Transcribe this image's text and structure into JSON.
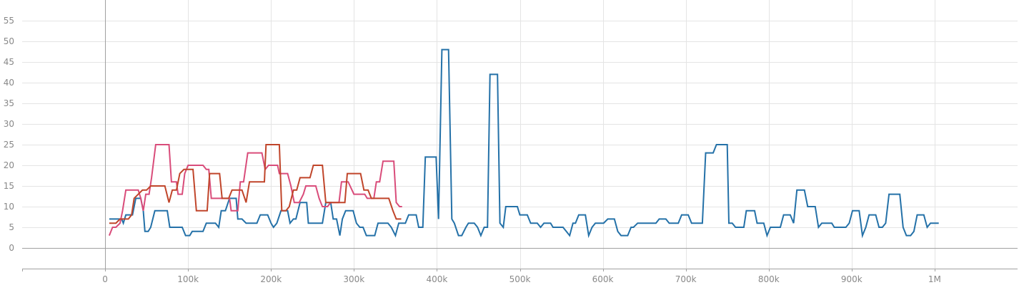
{
  "chart_data": {
    "type": "line",
    "title": "",
    "xlabel": "",
    "ylabel": "",
    "xlim": [
      -100000,
      1100000
    ],
    "ylim": [
      -5,
      60
    ],
    "x_ticks": [
      0,
      100000,
      200000,
      300000,
      400000,
      500000,
      600000,
      700000,
      800000,
      900000,
      1000000
    ],
    "x_tick_labels": [
      "0",
      "100k",
      "200k",
      "300k",
      "400k",
      "500k",
      "600k",
      "700k",
      "800k",
      "900k",
      "1M"
    ],
    "y_ticks": [
      0,
      5,
      10,
      15,
      20,
      25,
      30,
      35,
      40,
      45,
      50,
      55
    ],
    "y_tick_labels": [
      "0",
      "5",
      "10",
      "15",
      "20",
      "25",
      "30",
      "35",
      "40",
      "45",
      "50",
      "55"
    ],
    "grid": true,
    "colors": {
      "blue": "#2471a8",
      "pink": "#d94c7a",
      "red": "#c0452a",
      "grid": "#e4e4e4",
      "axis": "#a0a0a0",
      "tick_text": "#888888"
    },
    "series": [
      {
        "color_key": "blue",
        "points": [
          [
            5000,
            7
          ],
          [
            20000,
            7
          ],
          [
            22000,
            6
          ],
          [
            25000,
            8
          ],
          [
            33000,
            8
          ],
          [
            37000,
            12
          ],
          [
            43000,
            12
          ],
          [
            46000,
            9
          ],
          [
            48000,
            4
          ],
          [
            52000,
            4
          ],
          [
            55000,
            5
          ],
          [
            60000,
            9
          ],
          [
            75000,
            9
          ],
          [
            78000,
            5
          ],
          [
            93000,
            5
          ],
          [
            97000,
            3
          ],
          [
            102000,
            3
          ],
          [
            105000,
            4
          ],
          [
            118000,
            4
          ],
          [
            122000,
            6
          ],
          [
            133000,
            6
          ],
          [
            137000,
            5
          ],
          [
            140000,
            9
          ],
          [
            145000,
            9
          ],
          [
            150000,
            12
          ],
          [
            158000,
            12
          ],
          [
            160000,
            7
          ],
          [
            165000,
            7
          ],
          [
            170000,
            6
          ],
          [
            183000,
            6
          ],
          [
            187000,
            8
          ],
          [
            196000,
            8
          ],
          [
            200000,
            6
          ],
          [
            203000,
            5
          ],
          [
            207000,
            6
          ],
          [
            212000,
            9
          ],
          [
            220000,
            9
          ],
          [
            223000,
            6
          ],
          [
            227000,
            7
          ],
          [
            230000,
            7
          ],
          [
            235000,
            11
          ],
          [
            243000,
            11
          ],
          [
            245000,
            6
          ],
          [
            262000,
            6
          ],
          [
            266000,
            11
          ],
          [
            272000,
            11
          ],
          [
            275000,
            7
          ],
          [
            279000,
            7
          ],
          [
            283000,
            3
          ],
          [
            286000,
            7
          ],
          [
            290000,
            9
          ],
          [
            299000,
            9
          ],
          [
            303000,
            6
          ],
          [
            307000,
            5
          ],
          [
            311000,
            5
          ],
          [
            315000,
            3
          ],
          [
            325000,
            3
          ],
          [
            329000,
            6
          ],
          [
            341000,
            6
          ],
          [
            345000,
            5
          ],
          [
            350000,
            3
          ],
          [
            354000,
            6
          ],
          [
            362000,
            6
          ],
          [
            366000,
            8
          ],
          [
            375000,
            8
          ],
          [
            378000,
            5
          ],
          [
            383000,
            5
          ],
          [
            386000,
            22
          ],
          [
            399000,
            22
          ],
          [
            402000,
            7
          ],
          [
            406000,
            48
          ],
          [
            414000,
            48
          ],
          [
            418000,
            7
          ],
          [
            421000,
            6
          ],
          [
            426000,
            3
          ],
          [
            430000,
            3
          ],
          [
            435000,
            5
          ],
          [
            438000,
            6
          ],
          [
            445000,
            6
          ],
          [
            449000,
            5
          ],
          [
            453000,
            3
          ],
          [
            457000,
            5
          ],
          [
            461000,
            5
          ],
          [
            464000,
            42
          ],
          [
            473000,
            42
          ],
          [
            476000,
            6
          ],
          [
            480000,
            5
          ],
          [
            483000,
            10
          ],
          [
            497000,
            10
          ],
          [
            500000,
            8
          ],
          [
            509000,
            8
          ],
          [
            513000,
            6
          ],
          [
            521000,
            6
          ],
          [
            525000,
            5
          ],
          [
            529000,
            6
          ],
          [
            537000,
            6
          ],
          [
            540000,
            5
          ],
          [
            552000,
            5
          ],
          [
            560000,
            3
          ],
          [
            564000,
            6
          ],
          [
            567000,
            6
          ],
          [
            571000,
            8
          ],
          [
            579000,
            8
          ],
          [
            583000,
            3
          ],
          [
            587000,
            5
          ],
          [
            591000,
            6
          ],
          [
            601000,
            6
          ],
          [
            606000,
            7
          ],
          [
            614000,
            7
          ],
          [
            618000,
            4
          ],
          [
            622000,
            3
          ],
          [
            630000,
            3
          ],
          [
            634000,
            5
          ],
          [
            637000,
            5
          ],
          [
            642000,
            6
          ],
          [
            664000,
            6
          ],
          [
            668000,
            7
          ],
          [
            676000,
            7
          ],
          [
            680000,
            6
          ],
          [
            691000,
            6
          ],
          [
            695000,
            8
          ],
          [
            703000,
            8
          ],
          [
            707000,
            6
          ],
          [
            720000,
            6
          ],
          [
            724000,
            23
          ],
          [
            733000,
            23
          ],
          [
            737000,
            25
          ],
          [
            750000,
            25
          ],
          [
            752000,
            6
          ],
          [
            756000,
            6
          ],
          [
            760000,
            5
          ],
          [
            770000,
            5
          ],
          [
            773000,
            9
          ],
          [
            783000,
            9
          ],
          [
            786000,
            6
          ],
          [
            794000,
            6
          ],
          [
            798000,
            3
          ],
          [
            802000,
            5
          ],
          [
            814000,
            5
          ],
          [
            818000,
            8
          ],
          [
            826000,
            8
          ],
          [
            830000,
            6
          ],
          [
            834000,
            14
          ],
          [
            843000,
            14
          ],
          [
            847000,
            10
          ],
          [
            856000,
            10
          ],
          [
            860000,
            5
          ],
          [
            864000,
            6
          ],
          [
            876000,
            6
          ],
          [
            879000,
            5
          ],
          [
            893000,
            5
          ],
          [
            897000,
            6
          ],
          [
            901000,
            9
          ],
          [
            909000,
            9
          ],
          [
            913000,
            3
          ],
          [
            917000,
            5
          ],
          [
            921000,
            8
          ],
          [
            929000,
            8
          ],
          [
            933000,
            5
          ],
          [
            937000,
            5
          ],
          [
            941000,
            6
          ],
          [
            945000,
            13
          ],
          [
            958000,
            13
          ],
          [
            962000,
            5
          ],
          [
            966000,
            3
          ],
          [
            971000,
            3
          ],
          [
            975000,
            4
          ],
          [
            979000,
            8
          ],
          [
            987000,
            8
          ],
          [
            991000,
            5
          ],
          [
            995000,
            6
          ],
          [
            1005000,
            6
          ]
        ]
      },
      {
        "color_key": "pink",
        "points": [
          [
            5000,
            3
          ],
          [
            9000,
            5
          ],
          [
            13000,
            5
          ],
          [
            18000,
            6
          ],
          [
            21000,
            9
          ],
          [
            25000,
            14
          ],
          [
            40000,
            14
          ],
          [
            43000,
            12
          ],
          [
            46000,
            9
          ],
          [
            49000,
            13
          ],
          [
            53000,
            13
          ],
          [
            56000,
            17
          ],
          [
            61000,
            25
          ],
          [
            77000,
            25
          ],
          [
            80000,
            16
          ],
          [
            86000,
            16
          ],
          [
            88000,
            13
          ],
          [
            93000,
            13
          ],
          [
            96000,
            18
          ],
          [
            100000,
            20
          ],
          [
            118000,
            20
          ],
          [
            122000,
            19
          ],
          [
            125000,
            19
          ],
          [
            128000,
            12
          ],
          [
            144000,
            12
          ],
          [
            150000,
            12
          ],
          [
            152000,
            9
          ],
          [
            160000,
            9
          ],
          [
            163000,
            16
          ],
          [
            167000,
            16
          ],
          [
            172000,
            23
          ],
          [
            189000,
            23
          ],
          [
            193000,
            19
          ],
          [
            197000,
            20
          ],
          [
            208000,
            20
          ],
          [
            210000,
            18
          ],
          [
            220000,
            18
          ],
          [
            224000,
            15
          ],
          [
            228000,
            11
          ],
          [
            234000,
            11
          ],
          [
            239000,
            13
          ],
          [
            242000,
            15
          ],
          [
            254000,
            15
          ],
          [
            258000,
            12
          ],
          [
            262000,
            10
          ],
          [
            268000,
            10
          ],
          [
            272000,
            11
          ],
          [
            276000,
            11
          ],
          [
            282000,
            11
          ],
          [
            285000,
            16
          ],
          [
            293000,
            16
          ],
          [
            300000,
            13
          ],
          [
            313000,
            13
          ],
          [
            316000,
            12
          ],
          [
            324000,
            12
          ],
          [
            327000,
            16
          ],
          [
            331000,
            16
          ],
          [
            335000,
            21
          ],
          [
            348000,
            21
          ],
          [
            351000,
            11
          ],
          [
            355000,
            10
          ],
          [
            358000,
            10
          ]
        ]
      },
      {
        "color_key": "red",
        "points": [
          [
            5000,
            6
          ],
          [
            13000,
            6
          ],
          [
            18000,
            7
          ],
          [
            28000,
            7
          ],
          [
            32000,
            8
          ],
          [
            35000,
            12
          ],
          [
            40000,
            13
          ],
          [
            45000,
            14
          ],
          [
            50000,
            14
          ],
          [
            55000,
            15
          ],
          [
            72000,
            15
          ],
          [
            77000,
            11
          ],
          [
            81000,
            14
          ],
          [
            86000,
            14
          ],
          [
            90000,
            18
          ],
          [
            95000,
            19
          ],
          [
            106000,
            19
          ],
          [
            110000,
            9
          ],
          [
            123000,
            9
          ],
          [
            126000,
            18
          ],
          [
            138000,
            18
          ],
          [
            141000,
            12
          ],
          [
            149000,
            12
          ],
          [
            153000,
            14
          ],
          [
            165000,
            14
          ],
          [
            170000,
            11
          ],
          [
            174000,
            16
          ],
          [
            192000,
            16
          ],
          [
            194000,
            25
          ],
          [
            210000,
            25
          ],
          [
            213000,
            9
          ],
          [
            218000,
            9
          ],
          [
            222000,
            10
          ],
          [
            227000,
            14
          ],
          [
            231000,
            14
          ],
          [
            235000,
            17
          ],
          [
            247000,
            17
          ],
          [
            251000,
            20
          ],
          [
            262000,
            20
          ],
          [
            266000,
            11
          ],
          [
            289000,
            11
          ],
          [
            292000,
            18
          ],
          [
            308000,
            18
          ],
          [
            312000,
            14
          ],
          [
            317000,
            14
          ],
          [
            321000,
            12
          ],
          [
            342000,
            12
          ],
          [
            347000,
            9
          ],
          [
            351000,
            7
          ],
          [
            357000,
            7
          ]
        ]
      }
    ]
  }
}
